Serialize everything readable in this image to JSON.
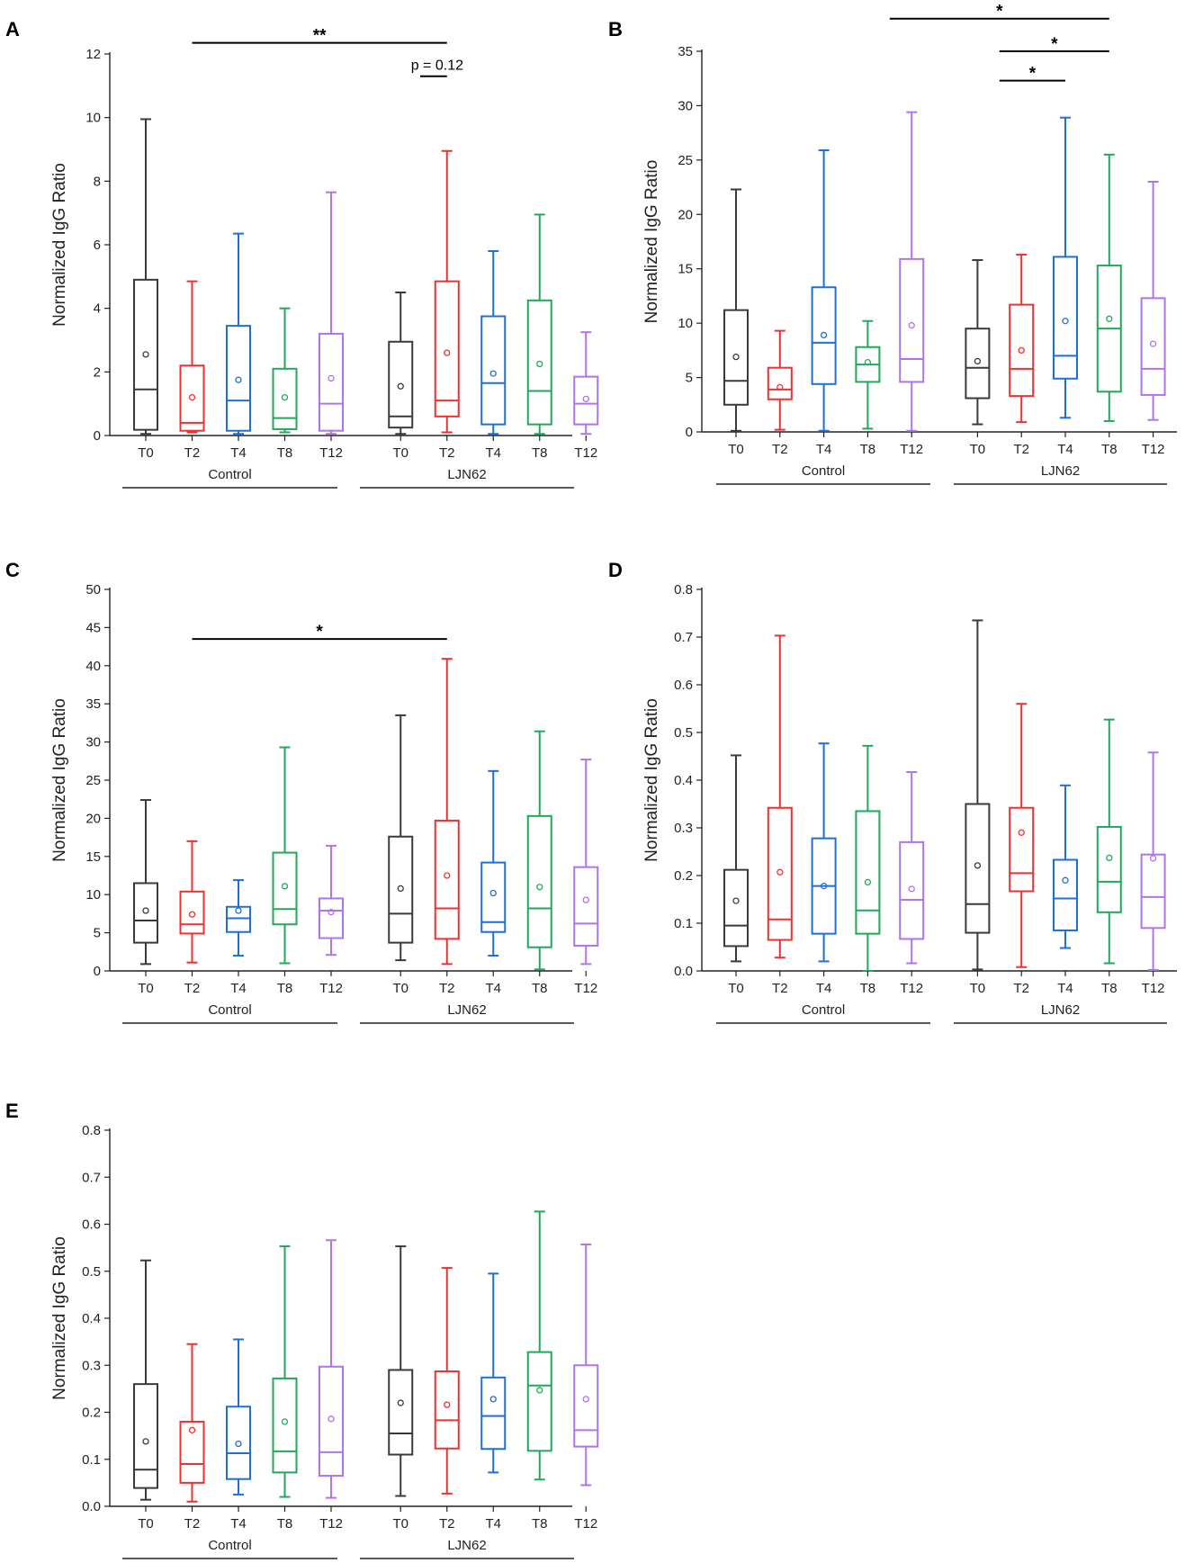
{
  "figure": {
    "description_label": "Normalized IgG Ratio box plots"
  },
  "colors": {
    "T0": "#3a3a3a",
    "T2": "#f03030",
    "T4": "#1f6fd6",
    "T8": "#22a85a",
    "T12": "#b074ea",
    "axis": "#222222"
  },
  "chart_data": [
    {
      "panel": "A",
      "type": "box",
      "ylabel": "Normalized IgG Ratio",
      "ylim": [
        0,
        12
      ],
      "yticks": [
        0,
        2,
        4,
        6,
        8,
        10,
        12
      ],
      "ytick_labels": [
        "0",
        "2",
        "4",
        "6",
        "8",
        "10",
        "12"
      ],
      "groups": [
        {
          "label": "Control",
          "boxes": [
            {
              "cat": "T0",
              "min": 0.05,
              "q1": 0.18,
              "median": 1.45,
              "q3": 4.9,
              "max": 9.95,
              "mean": 2.55
            },
            {
              "cat": "T2",
              "min": 0.1,
              "q1": 0.15,
              "median": 0.4,
              "q3": 2.2,
              "max": 4.85,
              "mean": 1.2
            },
            {
              "cat": "T4",
              "min": 0.05,
              "q1": 0.15,
              "median": 1.1,
              "q3": 3.45,
              "max": 6.35,
              "mean": 1.75
            },
            {
              "cat": "T8",
              "min": 0.1,
              "q1": 0.2,
              "median": 0.55,
              "q3": 2.1,
              "max": 4.0,
              "mean": 1.2
            },
            {
              "cat": "T12",
              "min": 0.05,
              "q1": 0.15,
              "median": 1.0,
              "q3": 3.2,
              "max": 7.65,
              "mean": 1.8
            }
          ]
        },
        {
          "label": "LJN62",
          "boxes": [
            {
              "cat": "T0",
              "min": 0.05,
              "q1": 0.25,
              "median": 0.6,
              "q3": 2.95,
              "max": 4.5,
              "mean": 1.55
            },
            {
              "cat": "T2",
              "min": 0.1,
              "q1": 0.6,
              "median": 1.1,
              "q3": 4.85,
              "max": 8.95,
              "mean": 2.6
            },
            {
              "cat": "T4",
              "min": 0.05,
              "q1": 0.35,
              "median": 1.65,
              "q3": 3.75,
              "max": 5.8,
              "mean": 1.95
            },
            {
              "cat": "T8",
              "min": 0.05,
              "q1": 0.35,
              "median": 1.4,
              "q3": 4.25,
              "max": 6.95,
              "mean": 2.25
            },
            {
              "cat": "T12",
              "min": 0.05,
              "q1": 0.35,
              "median": 1.0,
              "q3": 1.85,
              "max": 3.25,
              "mean": 1.15
            }
          ]
        }
      ],
      "significance": [
        {
          "from": 1,
          "to": 6,
          "label": "**",
          "y": 12.35
        },
        {
          "from": 5.5,
          "to": 6,
          "label": "p = 0.12",
          "y": 11.3
        }
      ]
    },
    {
      "panel": "B",
      "type": "box",
      "ylabel": "Normalized IgG Ratio",
      "ylim": [
        0,
        35
      ],
      "yticks": [
        0,
        5,
        10,
        15,
        20,
        25,
        30,
        35
      ],
      "ytick_labels": [
        "0",
        "5",
        "10",
        "15",
        "20",
        "25",
        "30",
        "35"
      ],
      "groups": [
        {
          "label": "Control",
          "boxes": [
            {
              "cat": "T0",
              "min": 0.1,
              "q1": 2.5,
              "median": 4.7,
              "q3": 11.2,
              "max": 22.3,
              "mean": 6.9
            },
            {
              "cat": "T2",
              "min": 0.2,
              "q1": 3.0,
              "median": 3.9,
              "q3": 5.9,
              "max": 9.3,
              "mean": 4.1
            },
            {
              "cat": "T4",
              "min": 0.1,
              "q1": 4.4,
              "median": 8.2,
              "q3": 13.3,
              "max": 25.9,
              "mean": 8.9
            },
            {
              "cat": "T8",
              "min": 0.3,
              "q1": 4.6,
              "median": 6.2,
              "q3": 7.8,
              "max": 10.2,
              "mean": 6.4
            },
            {
              "cat": "T12",
              "min": 0.1,
              "q1": 4.6,
              "median": 6.7,
              "q3": 15.9,
              "max": 29.4,
              "mean": 9.8
            }
          ]
        },
        {
          "label": "LJN62",
          "boxes": [
            {
              "cat": "T0",
              "min": 0.7,
              "q1": 3.1,
              "median": 5.9,
              "q3": 9.5,
              "max": 15.8,
              "mean": 6.5
            },
            {
              "cat": "T2",
              "min": 0.9,
              "q1": 3.3,
              "median": 5.8,
              "q3": 11.7,
              "max": 16.3,
              "mean": 7.5
            },
            {
              "cat": "T4",
              "min": 1.3,
              "q1": 4.9,
              "median": 7.0,
              "q3": 16.1,
              "max": 28.9,
              "mean": 10.2
            },
            {
              "cat": "T8",
              "min": 1.0,
              "q1": 3.7,
              "median": 9.5,
              "q3": 15.3,
              "max": 25.5,
              "mean": 10.4
            },
            {
              "cat": "T12",
              "min": 1.1,
              "q1": 3.4,
              "median": 5.8,
              "q3": 12.3,
              "max": 23.0,
              "mean": 8.1
            }
          ]
        }
      ],
      "significance": [
        {
          "from": 3.5,
          "to": 8,
          "label": "*",
          "y": 38.0
        },
        {
          "from": 5.5,
          "to": 8,
          "label": "*",
          "y": 35.0
        },
        {
          "from": 5.5,
          "to": 7,
          "label": "*",
          "y": 32.3
        }
      ]
    },
    {
      "panel": "C",
      "type": "box",
      "ylabel": "Normalized IgG Ratio",
      "ylim": [
        0,
        50
      ],
      "yticks": [
        0,
        5,
        10,
        15,
        20,
        25,
        30,
        35,
        40,
        45,
        50
      ],
      "ytick_labels": [
        "0",
        "5",
        "10",
        "15",
        "20",
        "25",
        "30",
        "35",
        "40",
        "45",
        "50"
      ],
      "groups": [
        {
          "label": "Control",
          "boxes": [
            {
              "cat": "T0",
              "min": 0.9,
              "q1": 3.7,
              "median": 6.6,
              "q3": 11.5,
              "max": 22.4,
              "mean": 7.9
            },
            {
              "cat": "T2",
              "min": 1.1,
              "q1": 4.9,
              "median": 6.1,
              "q3": 10.4,
              "max": 17.0,
              "mean": 7.4
            },
            {
              "cat": "T4",
              "min": 2.0,
              "q1": 5.1,
              "median": 6.9,
              "q3": 8.4,
              "max": 11.9,
              "mean": 7.9
            },
            {
              "cat": "T8",
              "min": 1.0,
              "q1": 6.1,
              "median": 8.1,
              "q3": 15.5,
              "max": 29.3,
              "mean": 11.1
            },
            {
              "cat": "T12",
              "min": 2.1,
              "q1": 4.3,
              "median": 7.9,
              "q3": 9.5,
              "max": 16.4,
              "mean": 7.7
            }
          ]
        },
        {
          "label": "LJN62",
          "boxes": [
            {
              "cat": "T0",
              "min": 1.4,
              "q1": 3.7,
              "median": 7.5,
              "q3": 17.6,
              "max": 33.5,
              "mean": 10.8
            },
            {
              "cat": "T2",
              "min": 0.9,
              "q1": 4.2,
              "median": 8.2,
              "q3": 19.7,
              "max": 40.9,
              "mean": 12.5
            },
            {
              "cat": "T4",
              "min": 2.0,
              "q1": 5.1,
              "median": 6.4,
              "q3": 14.2,
              "max": 26.2,
              "mean": 10.2
            },
            {
              "cat": "T8",
              "min": 0.2,
              "q1": 3.1,
              "median": 8.2,
              "q3": 20.3,
              "max": 31.4,
              "mean": 11.0
            },
            {
              "cat": "T12",
              "min": 0.9,
              "q1": 3.3,
              "median": 6.2,
              "q3": 13.6,
              "max": 27.7,
              "mean": 9.3
            }
          ]
        }
      ],
      "significance": [
        {
          "from": 1,
          "to": 6,
          "label": "*",
          "y": 43.5
        }
      ]
    },
    {
      "panel": "D",
      "type": "box",
      "ylabel": "Normalized IgG Ratio",
      "ylim": [
        0,
        0.8
      ],
      "yticks": [
        0,
        0.1,
        0.2,
        0.3,
        0.4,
        0.5,
        0.6,
        0.7,
        0.8
      ],
      "ytick_labels": [
        "0.0",
        "0.1",
        "0.2",
        "0.3",
        "0.4",
        "0.5",
        "0.6",
        "0.7",
        "0.8"
      ],
      "groups": [
        {
          "label": "Control",
          "boxes": [
            {
              "cat": "T0",
              "min": 0.02,
              "q1": 0.052,
              "median": 0.095,
              "q3": 0.212,
              "max": 0.452,
              "mean": 0.147
            },
            {
              "cat": "T2",
              "min": 0.028,
              "q1": 0.065,
              "median": 0.108,
              "q3": 0.342,
              "max": 0.703,
              "mean": 0.207
            },
            {
              "cat": "T4",
              "min": 0.02,
              "q1": 0.078,
              "median": 0.178,
              "q3": 0.278,
              "max": 0.477,
              "mean": 0.178
            },
            {
              "cat": "T8",
              "min": 0.0,
              "q1": 0.078,
              "median": 0.127,
              "q3": 0.335,
              "max": 0.472,
              "mean": 0.186
            },
            {
              "cat": "T12",
              "min": 0.016,
              "q1": 0.067,
              "median": 0.149,
              "q3": 0.27,
              "max": 0.417,
              "mean": 0.172
            }
          ]
        },
        {
          "label": "LJN62",
          "boxes": [
            {
              "cat": "T0",
              "min": 0.003,
              "q1": 0.08,
              "median": 0.14,
              "q3": 0.35,
              "max": 0.735,
              "mean": 0.221
            },
            {
              "cat": "T2",
              "min": 0.008,
              "q1": 0.167,
              "median": 0.205,
              "q3": 0.342,
              "max": 0.56,
              "mean": 0.29
            },
            {
              "cat": "T4",
              "min": 0.048,
              "q1": 0.085,
              "median": 0.152,
              "q3": 0.233,
              "max": 0.389,
              "mean": 0.19
            },
            {
              "cat": "T8",
              "min": 0.016,
              "q1": 0.123,
              "median": 0.187,
              "q3": 0.302,
              "max": 0.527,
              "mean": 0.237
            },
            {
              "cat": "T12",
              "min": 0.002,
              "q1": 0.09,
              "median": 0.155,
              "q3": 0.244,
              "max": 0.458,
              "mean": 0.236
            }
          ]
        }
      ],
      "significance": []
    },
    {
      "panel": "E",
      "type": "box",
      "ylabel": "Normalized IgG Ratio",
      "ylim": [
        0,
        0.8
      ],
      "yticks": [
        0,
        0.1,
        0.2,
        0.3,
        0.4,
        0.5,
        0.6,
        0.7,
        0.8
      ],
      "ytick_labels": [
        "0.0",
        "0.1",
        "0.2",
        "0.3",
        "0.4",
        "0.5",
        "0.6",
        "0.7",
        "0.8"
      ],
      "groups": [
        {
          "label": "Control",
          "boxes": [
            {
              "cat": "T0",
              "min": 0.014,
              "q1": 0.039,
              "median": 0.078,
              "q3": 0.26,
              "max": 0.523,
              "mean": 0.138
            },
            {
              "cat": "T2",
              "min": 0.01,
              "q1": 0.05,
              "median": 0.09,
              "q3": 0.18,
              "max": 0.345,
              "mean": 0.162
            },
            {
              "cat": "T4",
              "min": 0.025,
              "q1": 0.058,
              "median": 0.113,
              "q3": 0.212,
              "max": 0.355,
              "mean": 0.133
            },
            {
              "cat": "T8",
              "min": 0.02,
              "q1": 0.072,
              "median": 0.117,
              "q3": 0.272,
              "max": 0.553,
              "mean": 0.18
            },
            {
              "cat": "T12",
              "min": 0.018,
              "q1": 0.065,
              "median": 0.115,
              "q3": 0.297,
              "max": 0.566,
              "mean": 0.186
            }
          ]
        },
        {
          "label": "LJN62",
          "boxes": [
            {
              "cat": "T0",
              "min": 0.022,
              "q1": 0.11,
              "median": 0.155,
              "q3": 0.29,
              "max": 0.553,
              "mean": 0.22
            },
            {
              "cat": "T2",
              "min": 0.027,
              "q1": 0.123,
              "median": 0.183,
              "q3": 0.287,
              "max": 0.507,
              "mean": 0.216
            },
            {
              "cat": "T4",
              "min": 0.072,
              "q1": 0.122,
              "median": 0.192,
              "q3": 0.274,
              "max": 0.495,
              "mean": 0.228
            },
            {
              "cat": "T8",
              "min": 0.057,
              "q1": 0.118,
              "median": 0.257,
              "q3": 0.328,
              "max": 0.627,
              "mean": 0.247
            },
            {
              "cat": "T12",
              "min": 0.045,
              "q1": 0.127,
              "median": 0.162,
              "q3": 0.3,
              "max": 0.557,
              "mean": 0.228
            }
          ]
        }
      ],
      "significance": []
    }
  ]
}
